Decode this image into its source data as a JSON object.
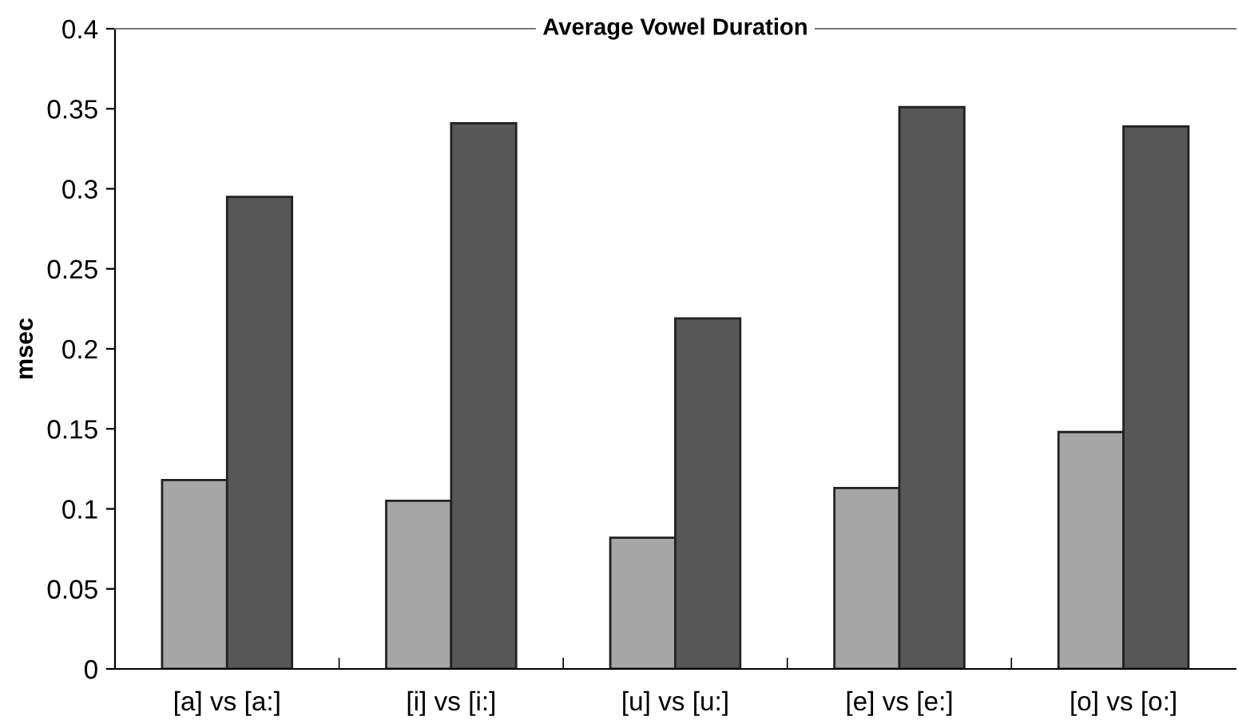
{
  "chart_data": {
    "type": "bar",
    "title": "Average Vowel Duration",
    "ylabel": "msec",
    "categories": [
      "[a] vs [a:]",
      "[i] vs [i:]",
      "[u] vs [u:]",
      "[e] vs [e:]",
      "[o] vs [o:]"
    ],
    "series": [
      {
        "color": "#a6a6a6",
        "values": [
          0.118,
          0.105,
          0.082,
          0.113,
          0.148
        ]
      },
      {
        "color": "#575757",
        "values": [
          0.295,
          0.341,
          0.219,
          0.351,
          0.339
        ]
      }
    ],
    "ylim": [
      0,
      0.4
    ],
    "yticks": [
      0,
      0.05,
      0.1,
      0.15,
      0.2,
      0.25,
      0.3,
      0.35,
      0.4
    ],
    "grid": false
  }
}
